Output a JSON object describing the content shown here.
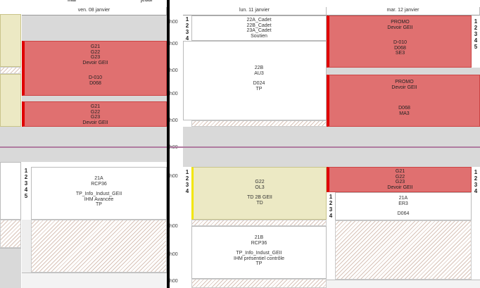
{
  "left_panel": {
    "top_labels": {
      "col1": "mar",
      "col2": "jeudi"
    },
    "header": "ven. 08 janvier",
    "events": [
      {
        "lines": [
          "G21",
          "G22",
          "G23",
          "Devoir GEII",
          "",
          "D-010",
          "D068"
        ]
      },
      {
        "lines": [
          "G21",
          "G22",
          "G23",
          "Devoir GEII"
        ]
      },
      {
        "lines": [
          "21A",
          "RCP36",
          "",
          "TP_Info_Indust_GEII",
          "IHM Avancée",
          "TP"
        ]
      }
    ],
    "nums": [
      "1",
      "2",
      "3",
      "4",
      "5"
    ]
  },
  "right_panel": {
    "headers": {
      "mon": "lun. 11 janvier",
      "tue": "mar. 12 janvier"
    },
    "hour_labels": [
      "h00",
      "h00",
      "h00",
      "h00",
      "h00",
      "h00",
      "h00",
      "h00",
      "h00",
      "h00"
    ],
    "events": [
      {
        "lines": [
          "22A_Cadet",
          "22B_Cadet",
          "23A_Cadet",
          "Soutien"
        ]
      },
      {
        "lines": [
          "22B",
          "AU3",
          "",
          "D024",
          "TP"
        ]
      },
      {
        "lines": [
          "PROMO",
          "Devoir GEII",
          "",
          "D-010",
          "D068",
          "SE3"
        ]
      },
      {
        "lines": [
          "PROMO",
          "Devoir GEII",
          "",
          "",
          "D068",
          "MA3"
        ]
      },
      {
        "lines": [
          "G22",
          "OL3",
          "",
          "TD 2B GEII",
          "TD"
        ]
      },
      {
        "lines": [
          "21B",
          "RCP36",
          "",
          "TP_Info_Indust_GEII",
          "IHM présentiel contrôle",
          "TP"
        ]
      },
      {
        "lines": [
          "G21",
          "G22",
          "G23",
          "Devoir GEII"
        ]
      },
      {
        "lines": [
          "21A",
          "ER3",
          "",
          "D064"
        ]
      }
    ],
    "nums_a": [
      "1",
      "2",
      "3",
      "4"
    ],
    "nums_b": [
      "1",
      "2",
      "3",
      "4",
      "5"
    ],
    "nums_c": [
      "1",
      "2",
      "3",
      "4"
    ],
    "nums_d": [
      "1",
      "2",
      "3",
      "4"
    ],
    "nums_e": [
      "1",
      "2",
      "3",
      "4"
    ]
  }
}
